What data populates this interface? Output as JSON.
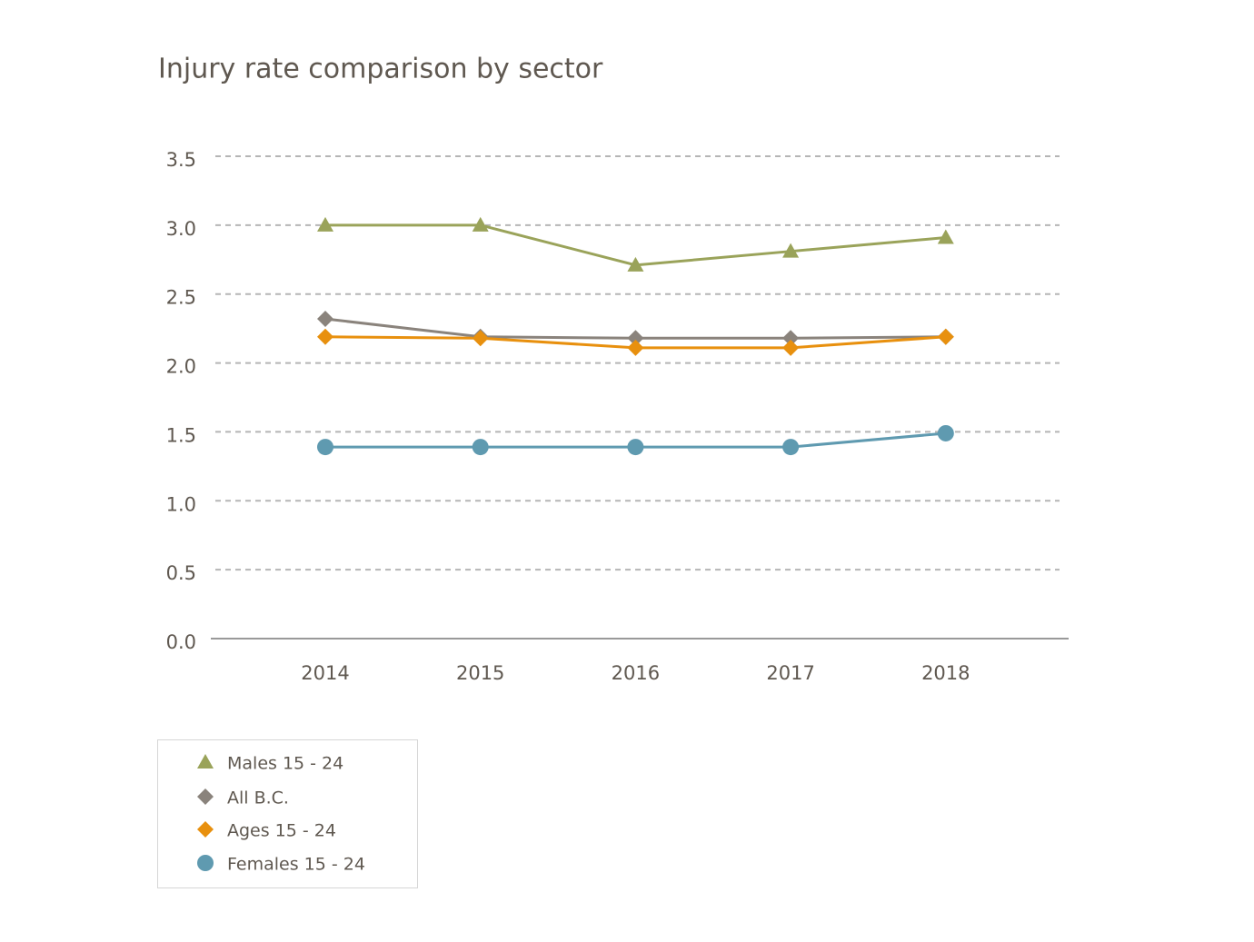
{
  "chart_data": {
    "type": "line",
    "title": "Injury rate comparison by sector",
    "categories": [
      "2014",
      "2015",
      "2016",
      "2017",
      "2018"
    ],
    "series": [
      {
        "name": "Males 15 - 24",
        "color": "#9aa35a",
        "marker": "triangle",
        "values": [
          3.0,
          3.0,
          2.71,
          2.81,
          2.91
        ]
      },
      {
        "name": "All B.C.",
        "color": "#8a837c",
        "marker": "diamond",
        "values": [
          2.32,
          2.19,
          2.18,
          2.18,
          2.19
        ]
      },
      {
        "name": "Ages 15 - 24",
        "color": "#e8900e",
        "marker": "diamond",
        "values": [
          2.19,
          2.18,
          2.11,
          2.11,
          2.19
        ]
      },
      {
        "name": "Females 15 - 24",
        "color": "#5f9ab0",
        "marker": "circle",
        "values": [
          1.39,
          1.39,
          1.39,
          1.39,
          1.49
        ]
      }
    ],
    "ylim": [
      0,
      3.5
    ],
    "yticks": [
      {
        "value": 0,
        "label": "0.0"
      },
      0.5,
      {
        "value": 1,
        "label": "1.0"
      },
      1.5,
      {
        "value": 2,
        "label": "2.0"
      },
      2.5,
      {
        "value": 3,
        "label": "3.0"
      },
      3.5
    ],
    "grid": true,
    "legend": "bottom-left"
  }
}
